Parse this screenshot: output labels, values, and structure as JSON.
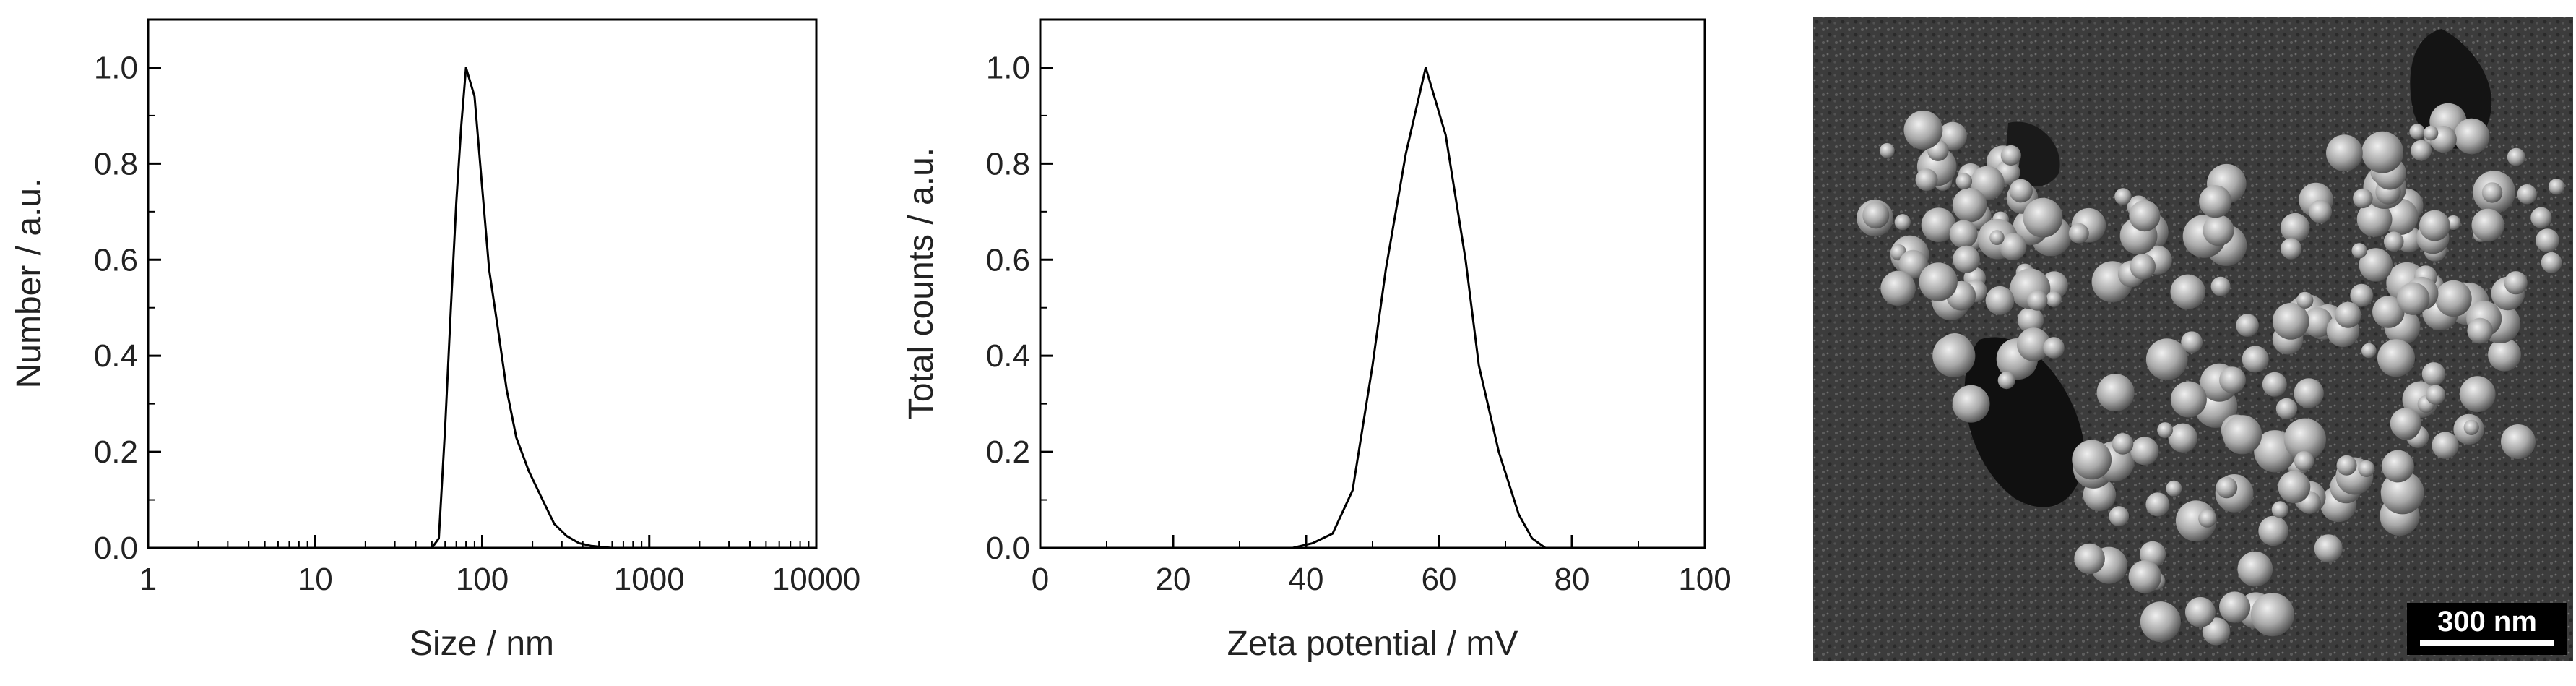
{
  "colors": {
    "line": "#000000",
    "text": "#222222",
    "sem_scale_text": "#ffffff"
  },
  "chart_data": [
    {
      "type": "line",
      "x_scale": "log",
      "xlabel": "Size / nm",
      "ylabel": "Number / a.u.",
      "xlim": [
        1,
        10000
      ],
      "ylim": [
        0,
        1.1
      ],
      "x_ticks": [
        1,
        10,
        100,
        1000,
        10000
      ],
      "x_tick_labels": [
        "1",
        "10",
        "100",
        "1000",
        "10000"
      ],
      "y_ticks": [
        0,
        0.2,
        0.4,
        0.6,
        0.8,
        1.0
      ],
      "y_tick_labels": [
        "0.0",
        "0.2",
        "0.4",
        "0.6",
        "0.8",
        "1.0"
      ],
      "grid": false,
      "series": [
        {
          "x": [
            50,
            55,
            60,
            65,
            70,
            75,
            80,
            90,
            100,
            110,
            125,
            140,
            160,
            190,
            230,
            270,
            320,
            380,
            450,
            550,
            600
          ],
          "y": [
            0.0,
            0.02,
            0.25,
            0.5,
            0.72,
            0.88,
            1.0,
            0.94,
            0.75,
            0.58,
            0.45,
            0.33,
            0.23,
            0.16,
            0.1,
            0.05,
            0.025,
            0.01,
            0.004,
            0.001,
            0.0
          ]
        }
      ]
    },
    {
      "type": "line",
      "xlabel": "Zeta potential / mV",
      "ylabel": "Total counts / a.u.",
      "xlim": [
        0,
        100
      ],
      "ylim": [
        0,
        1.1
      ],
      "x_ticks": [
        0,
        20,
        40,
        60,
        80,
        100
      ],
      "x_tick_labels": [
        "0",
        "20",
        "40",
        "60",
        "80",
        "100"
      ],
      "y_ticks": [
        0,
        0.2,
        0.4,
        0.6,
        0.8,
        1.0
      ],
      "y_tick_labels": [
        "0.0",
        "0.2",
        "0.4",
        "0.6",
        "0.8",
        "1.0"
      ],
      "grid": false,
      "series": [
        {
          "x": [
            0,
            38,
            41,
            44,
            47,
            50,
            52,
            55,
            58,
            61,
            64,
            66,
            69,
            72,
            74,
            76,
            100
          ],
          "y": [
            0,
            0,
            0.01,
            0.03,
            0.12,
            0.38,
            0.58,
            0.82,
            1.0,
            0.86,
            0.6,
            0.38,
            0.2,
            0.07,
            0.02,
            0.0,
            0.0
          ]
        }
      ]
    }
  ],
  "sem_image": {
    "scale_bar_label": "300 nm"
  }
}
